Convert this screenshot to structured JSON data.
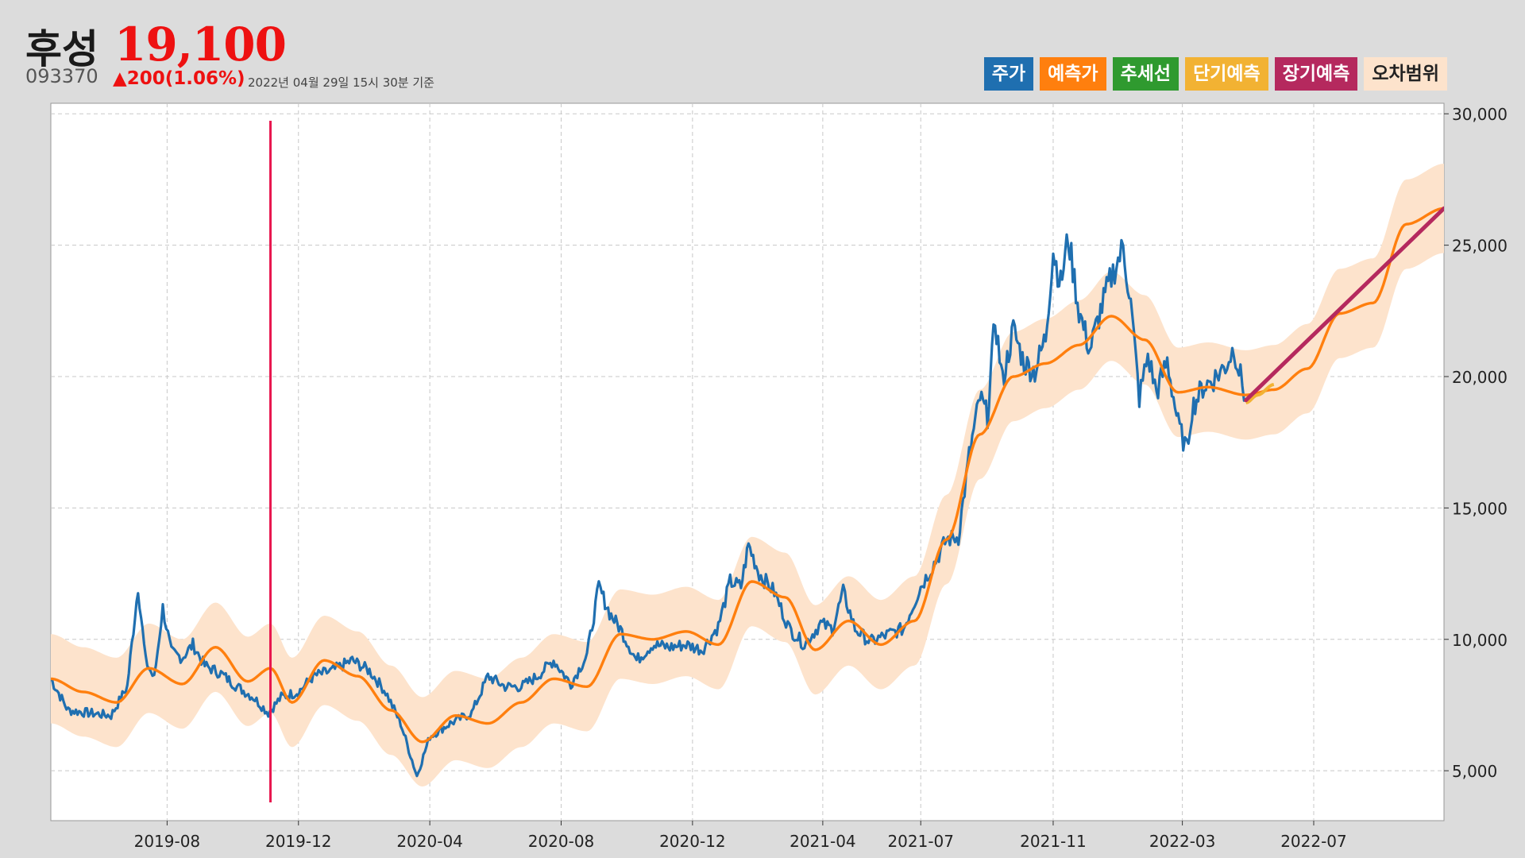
{
  "header": {
    "name": "후성",
    "price": "19,100",
    "code": "093370",
    "change": "▲200(1.06%)",
    "as_of": "2022년 04월 29일 15시 30분 기준"
  },
  "legend": [
    {
      "label": "주가",
      "color": "#1f6fb0"
    },
    {
      "label": "예측가",
      "color": "#ff7f0e"
    },
    {
      "label": "추세선",
      "color": "#2f9a2f"
    },
    {
      "label": "단기예측",
      "color": "#f2b233"
    },
    {
      "label": "장기예측",
      "color": "#b5295e"
    },
    {
      "label": "오차범위",
      "color": "#fde3cc"
    }
  ],
  "colors": {
    "price": "#1f6fb0",
    "forecast": "#ff7f0e",
    "short_term": "#f2b233",
    "long_term": "#b5295e",
    "error_band": "#fde3cc",
    "marker": "#e8174f",
    "plot_bg": "#ffffff",
    "grid": "#c8c8c8"
  },
  "chart_data": {
    "type": "line",
    "x_axis": {
      "type": "date",
      "range": [
        "2019-04-15",
        "2022-10-30"
      ],
      "ticks": [
        "2019-08",
        "2019-12",
        "2020-04",
        "2020-08",
        "2020-12",
        "2021-04",
        "2021-07",
        "2021-11",
        "2022-03",
        "2022-07"
      ]
    },
    "y_axis": {
      "range": [
        3100,
        30400
      ],
      "ticks": [
        "5,000",
        "10,000",
        "15,000",
        "20,000",
        "25,000",
        "30,000"
      ],
      "position": "right"
    },
    "grid": true,
    "legend_position": "top-right",
    "marker_line_date": "2019-11-05",
    "series": [
      {
        "name": "주가",
        "points": [
          [
            "2019-04-15",
            8500
          ],
          [
            "2019-05-01",
            7300
          ],
          [
            "2019-05-20",
            7200
          ],
          [
            "2019-06-10",
            7100
          ],
          [
            "2019-06-25",
            8200
          ],
          [
            "2019-07-05",
            12000
          ],
          [
            "2019-07-12",
            9200
          ],
          [
            "2019-07-20",
            8500
          ],
          [
            "2019-07-28",
            11200
          ],
          [
            "2019-08-05",
            9500
          ],
          [
            "2019-08-15",
            9300
          ],
          [
            "2019-08-25",
            9800
          ],
          [
            "2019-09-05",
            9000
          ],
          [
            "2019-09-20",
            8700
          ],
          [
            "2019-10-05",
            8200
          ],
          [
            "2019-10-20",
            7800
          ],
          [
            "2019-11-03",
            7200
          ],
          [
            "2019-11-15",
            7800
          ],
          [
            "2019-12-01",
            8000
          ],
          [
            "2019-12-15",
            8600
          ],
          [
            "2020-01-01",
            8800
          ],
          [
            "2020-01-20",
            9200
          ],
          [
            "2020-02-05",
            8800
          ],
          [
            "2020-02-20",
            8000
          ],
          [
            "2020-03-05",
            6800
          ],
          [
            "2020-03-20",
            4800
          ],
          [
            "2020-04-01",
            6300
          ],
          [
            "2020-04-20",
            6800
          ],
          [
            "2020-05-10",
            7200
          ],
          [
            "2020-05-25",
            8600
          ],
          [
            "2020-06-10",
            8200
          ],
          [
            "2020-06-25",
            8200
          ],
          [
            "2020-07-10",
            8600
          ],
          [
            "2020-07-25",
            9200
          ],
          [
            "2020-08-10",
            8300
          ],
          [
            "2020-08-25",
            9400
          ],
          [
            "2020-09-05",
            12000
          ],
          [
            "2020-09-15",
            11000
          ],
          [
            "2020-09-25",
            10400
          ],
          [
            "2020-10-10",
            9200
          ],
          [
            "2020-10-25",
            9800
          ],
          [
            "2020-11-10",
            9700
          ],
          [
            "2020-11-25",
            9800
          ],
          [
            "2020-12-10",
            9600
          ],
          [
            "2020-12-25",
            10500
          ],
          [
            "2021-01-05",
            12200
          ],
          [
            "2021-01-15",
            12000
          ],
          [
            "2021-01-22",
            13600
          ],
          [
            "2021-02-01",
            12500
          ],
          [
            "2021-02-15",
            11800
          ],
          [
            "2021-03-01",
            10400
          ],
          [
            "2021-03-15",
            9800
          ],
          [
            "2021-03-30",
            10600
          ],
          [
            "2021-04-10",
            10400
          ],
          [
            "2021-04-20",
            11800
          ],
          [
            "2021-05-01",
            10400
          ],
          [
            "2021-05-15",
            9900
          ],
          [
            "2021-06-01",
            10200
          ],
          [
            "2021-06-15",
            10400
          ],
          [
            "2021-07-01",
            12000
          ],
          [
            "2021-07-15",
            13000
          ],
          [
            "2021-07-25",
            13800
          ],
          [
            "2021-08-05",
            13900
          ],
          [
            "2021-08-15",
            17000
          ],
          [
            "2021-08-25",
            19200
          ],
          [
            "2021-09-01",
            18500
          ],
          [
            "2021-09-08",
            22200
          ],
          [
            "2021-09-15",
            19800
          ],
          [
            "2021-09-25",
            21800
          ],
          [
            "2021-10-05",
            20500
          ],
          [
            "2021-10-15",
            20200
          ],
          [
            "2021-10-25",
            21500
          ],
          [
            "2021-11-01",
            24800
          ],
          [
            "2021-11-08",
            23500
          ],
          [
            "2021-11-15",
            25300
          ],
          [
            "2021-11-25",
            22500
          ],
          [
            "2021-12-05",
            21000
          ],
          [
            "2021-12-15",
            22500
          ],
          [
            "2021-12-25",
            23800
          ],
          [
            "2022-01-05",
            24900
          ],
          [
            "2022-01-12",
            22800
          ],
          [
            "2022-01-20",
            19200
          ],
          [
            "2022-01-28",
            20800
          ],
          [
            "2022-02-05",
            19400
          ],
          [
            "2022-02-15",
            20600
          ],
          [
            "2022-02-25",
            18200
          ],
          [
            "2022-03-05",
            17200
          ],
          [
            "2022-03-10",
            18800
          ],
          [
            "2022-03-20",
            19600
          ],
          [
            "2022-03-30",
            19900
          ],
          [
            "2022-04-10",
            20400
          ],
          [
            "2022-04-18",
            21100
          ],
          [
            "2022-04-24",
            20000
          ],
          [
            "2022-04-29",
            19100
          ]
        ]
      },
      {
        "name": "예측가",
        "points": [
          [
            "2019-04-15",
            8500
          ],
          [
            "2019-05-15",
            8000
          ],
          [
            "2019-06-15",
            7600
          ],
          [
            "2019-07-15",
            8900
          ],
          [
            "2019-08-15",
            8300
          ],
          [
            "2019-09-15",
            9700
          ],
          [
            "2019-10-15",
            8400
          ],
          [
            "2019-11-05",
            8900
          ],
          [
            "2019-11-25",
            7600
          ],
          [
            "2019-12-25",
            9200
          ],
          [
            "2020-01-25",
            8600
          ],
          [
            "2020-02-25",
            7300
          ],
          [
            "2020-03-25",
            6100
          ],
          [
            "2020-04-25",
            7100
          ],
          [
            "2020-05-25",
            6800
          ],
          [
            "2020-06-25",
            7600
          ],
          [
            "2020-07-25",
            8500
          ],
          [
            "2020-08-25",
            8200
          ],
          [
            "2020-09-25",
            10200
          ],
          [
            "2020-10-25",
            10000
          ],
          [
            "2020-11-25",
            10300
          ],
          [
            "2020-12-25",
            9800
          ],
          [
            "2021-01-25",
            12200
          ],
          [
            "2021-02-25",
            11600
          ],
          [
            "2021-03-25",
            9600
          ],
          [
            "2021-04-25",
            10700
          ],
          [
            "2021-05-25",
            9800
          ],
          [
            "2021-06-25",
            10700
          ],
          [
            "2021-07-25",
            13800
          ],
          [
            "2021-08-25",
            17800
          ],
          [
            "2021-09-25",
            20000
          ],
          [
            "2021-10-25",
            20500
          ],
          [
            "2021-11-25",
            21200
          ],
          [
            "2021-12-25",
            22300
          ],
          [
            "2022-01-25",
            21400
          ],
          [
            "2022-02-25",
            19400
          ],
          [
            "2022-03-25",
            19600
          ],
          [
            "2022-04-29",
            19300
          ],
          [
            "2022-05-25",
            19500
          ],
          [
            "2022-06-25",
            20300
          ],
          [
            "2022-07-25",
            22400
          ],
          [
            "2022-08-25",
            22800
          ],
          [
            "2022-09-25",
            25800
          ],
          [
            "2022-10-30",
            26400
          ]
        ]
      },
      {
        "name": "단기예측",
        "points": [
          [
            "2022-04-29",
            19000
          ],
          [
            "2022-05-10",
            19300
          ],
          [
            "2022-05-25",
            19700
          ]
        ]
      },
      {
        "name": "장기예측",
        "points": [
          [
            "2022-04-29",
            19100
          ],
          [
            "2022-10-30",
            26400
          ]
        ]
      }
    ],
    "error_band_width": 1700
  }
}
